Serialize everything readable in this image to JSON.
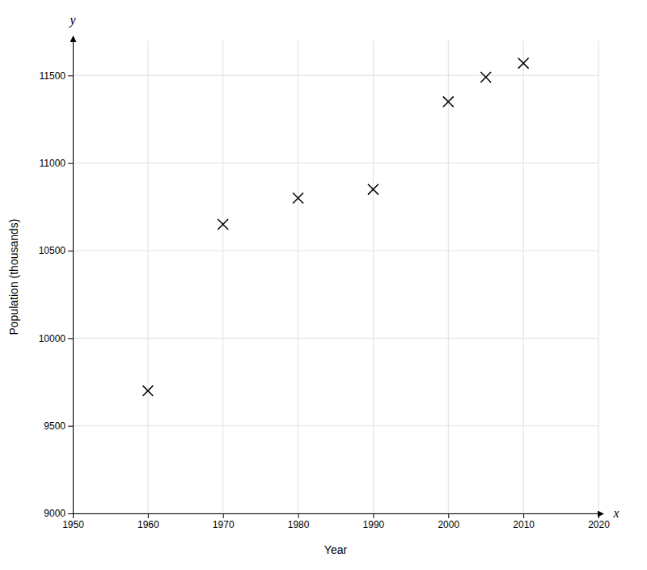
{
  "chart_data": {
    "type": "scatter",
    "x": [
      1960,
      1970,
      1980,
      1990,
      2000,
      2005,
      2010
    ],
    "values": [
      9700,
      10650,
      10800,
      10850,
      11350,
      11490,
      11570
    ],
    "x_label": "Year",
    "y_label": "Population (thousands)",
    "annotations": [
      {
        "text": "x"
      },
      {
        "text": "y"
      }
    ],
    "xlim": [
      1950,
      2020
    ],
    "ylim": [
      9000,
      11700
    ],
    "xticks": [
      1950,
      1960,
      1970,
      1980,
      1990,
      2000,
      2010,
      2020
    ],
    "yticks": [
      9000,
      9500,
      10000,
      10500,
      11000,
      11500
    ],
    "grid": true,
    "marker": "x",
    "color": "black"
  }
}
